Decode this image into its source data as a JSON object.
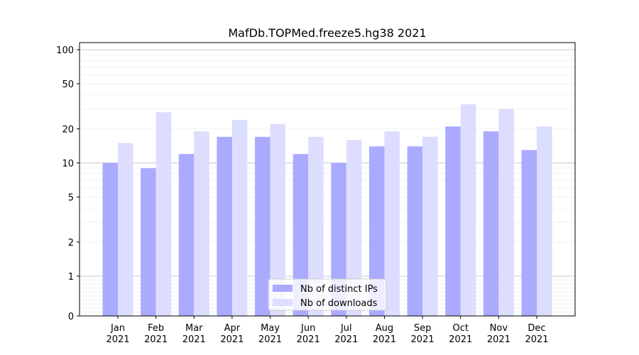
{
  "chart_data": {
    "type": "bar",
    "title": "MafDb.TOPMed.freeze5.hg38 2021",
    "xlabel": "",
    "ylabel": "",
    "y_scale": "symlog",
    "ylim": [
      0,
      120
    ],
    "yticks": [
      0,
      1,
      2,
      5,
      10,
      20,
      50,
      100
    ],
    "categories": [
      [
        "Jan",
        "2021"
      ],
      [
        "Feb",
        "2021"
      ],
      [
        "Mar",
        "2021"
      ],
      [
        "Apr",
        "2021"
      ],
      [
        "May",
        "2021"
      ],
      [
        "Jun",
        "2021"
      ],
      [
        "Jul",
        "2021"
      ],
      [
        "Aug",
        "2021"
      ],
      [
        "Sep",
        "2021"
      ],
      [
        "Oct",
        "2021"
      ],
      [
        "Nov",
        "2021"
      ],
      [
        "Dec",
        "2021"
      ]
    ],
    "series": [
      {
        "name": "Nb of distinct IPs",
        "color": "#aaaaff",
        "values": [
          10,
          9,
          12,
          17,
          17,
          12,
          10,
          14,
          14,
          21,
          19,
          13
        ]
      },
      {
        "name": "Nb of downloads",
        "color": "#ddddff",
        "values": [
          15,
          28,
          19,
          24,
          22,
          17,
          16,
          19,
          17,
          33,
          30,
          21
        ]
      }
    ],
    "grid": true,
    "legend_position": "bottom-center"
  }
}
